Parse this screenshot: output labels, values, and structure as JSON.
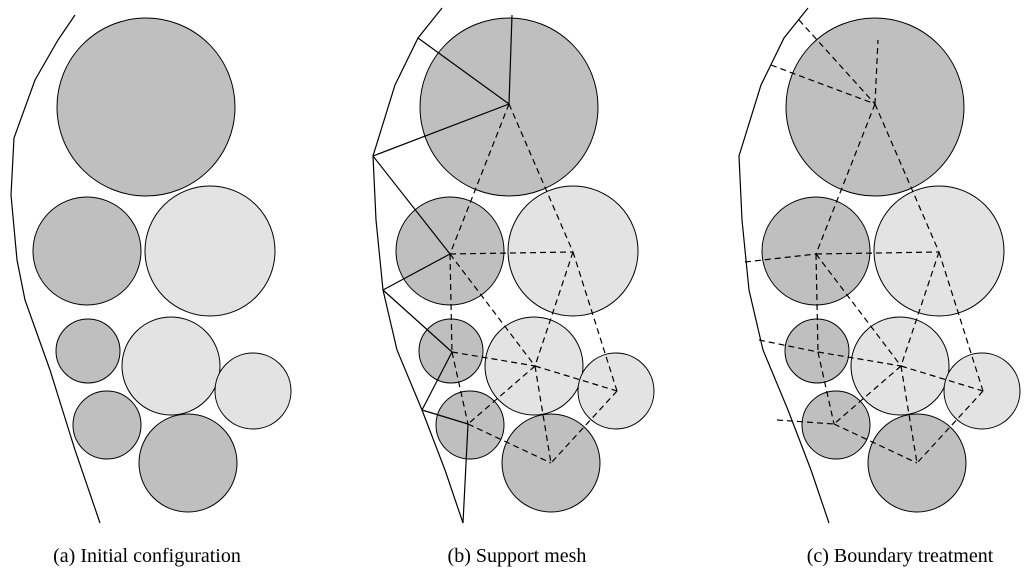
{
  "captions": [
    "(a) Initial configuration",
    "(b) Support mesh",
    "(c) Boundary treatment"
  ]
}
